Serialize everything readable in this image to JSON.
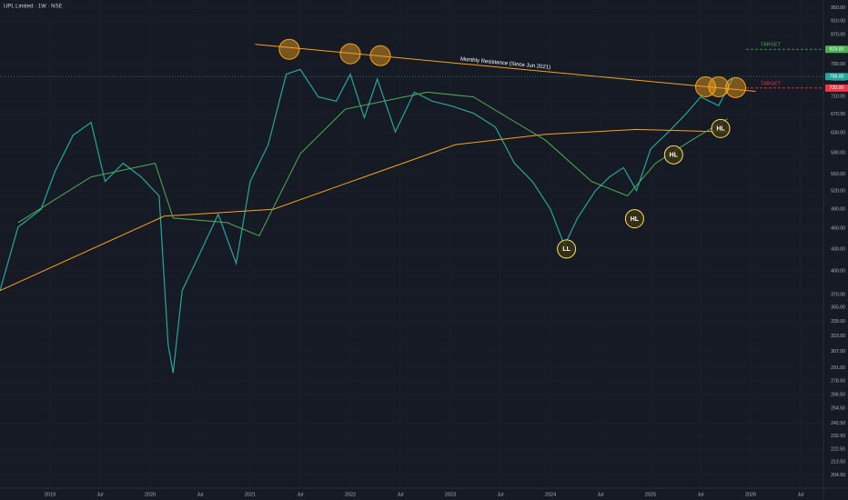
{
  "chart_data": {
    "type": "line",
    "title": "UPL Limited · 1W · NSE",
    "log_scale": true,
    "grid": true,
    "xlim": [
      2018.5,
      2026.727
    ],
    "ylim": [
      200,
      975
    ],
    "xticks": [
      2019,
      {
        "value": 2019.5,
        "label": "Jul"
      },
      2020,
      {
        "value": 2020.5,
        "label": "Jul"
      },
      2021,
      {
        "value": 2021.5,
        "label": "Jul"
      },
      2022,
      {
        "value": 2022.5,
        "label": "Jul"
      },
      2023,
      {
        "value": 2023.5,
        "label": "Jul"
      },
      2024,
      {
        "value": 2024.5,
        "label": "Jul"
      },
      2025,
      {
        "value": 2025.5,
        "label": "Jul"
      },
      2026,
      {
        "value": 2026.5,
        "label": "Jul"
      }
    ],
    "yticks": [
      {
        "value": 950,
        "label": "950.00"
      },
      {
        "value": 910,
        "label": "910.00"
      },
      {
        "value": 870,
        "label": "870.00"
      },
      {
        "value": 830,
        "label": "830.00"
      },
      {
        "value": 790,
        "label": "790.00"
      },
      {
        "value": 750,
        "label": "750.00"
      },
      {
        "value": 710,
        "label": "710.00"
      },
      {
        "value": 670,
        "label": "670.00"
      },
      {
        "value": 630,
        "label": "630.00"
      },
      {
        "value": 590,
        "label": "590.00"
      },
      {
        "value": 550,
        "label": "550.00"
      },
      {
        "value": 520,
        "label": "520.00"
      },
      {
        "value": 490,
        "label": "490.00"
      },
      {
        "value": 460,
        "label": "460.00"
      },
      {
        "value": 430,
        "label": "430.00"
      },
      {
        "value": 400,
        "label": "400.00"
      },
      {
        "value": 370,
        "label": "370.00"
      },
      {
        "value": 355,
        "label": "355.00"
      },
      {
        "value": 339,
        "label": "339.00"
      },
      {
        "value": 323,
        "label": "323.00"
      },
      {
        "value": 307,
        "label": "307.00"
      },
      {
        "value": 291,
        "label": "291.00"
      },
      {
        "value": 278.5,
        "label": "278.50"
      },
      {
        "value": 266.5,
        "label": "266.50"
      },
      {
        "value": 254.5,
        "label": "254.50"
      },
      {
        "value": 242.5,
        "label": "242.50"
      },
      {
        "value": 232.5,
        "label": "232.50"
      },
      {
        "value": 222.5,
        "label": "222.50"
      },
      {
        "value": 213.5,
        "label": "213.50"
      },
      {
        "value": 204.5,
        "label": "204.50"
      }
    ],
    "series": [
      {
        "color": "#26a69a",
        "x": [
          2018.5,
          2018.68,
          2018.91,
          2019.05,
          2019.23,
          2019.41,
          2019.55,
          2019.73,
          2019.91,
          2020.09,
          2020.18,
          2020.23,
          2020.32,
          2020.45,
          2020.68,
          2020.86,
          2021.0,
          2021.18,
          2021.36,
          2021.5,
          2021.68,
          2021.86,
          2022.0,
          2022.14,
          2022.27,
          2022.45,
          2022.64,
          2022.82,
          2023.0,
          2023.23,
          2023.45,
          2023.64,
          2023.82,
          2024.0,
          2024.14,
          2024.27,
          2024.45,
          2024.59,
          2024.73,
          2024.86,
          2025.0,
          2025.18,
          2025.36,
          2025.5,
          2025.68,
          2025.82
        ],
        "values": [
          375,
          462,
          490,
          555,
          625,
          652,
          537,
          570,
          545,
          512,
          314,
          286,
          375,
          410,
          482,
          410,
          537,
          606,
          764,
          776,
          709,
          699,
          764,
          662,
          752,
          632,
          720,
          699,
          689,
          672,
          642,
          570,
          537,
          490,
          435,
          476,
          521,
          545,
          562,
          521,
          597,
          632,
          672,
          709,
          689,
          752
        ]
      },
      {
        "color": "#f7a21b",
        "x": [
          2018.5,
          2020.14,
          2021.23,
          2022.14,
          2023.05,
          2023.95,
          2024.86,
          2025.77
        ],
        "values": [
          375,
          479,
          490,
          545,
          606,
          627,
          637,
          632
        ]
      },
      {
        "color": "#4caf50",
        "x": [
          2018.68,
          2019.41,
          2020.05,
          2020.23,
          2020.77,
          2021.09,
          2021.5,
          2021.95,
          2022.77,
          2023.23,
          2023.59,
          2023.95,
          2024.41,
          2024.77,
          2025.05,
          2025.41,
          2025.77
        ],
        "values": [
          469,
          545,
          570,
          476,
          469,
          449,
          588,
          681,
          720,
          709,
          660,
          615,
          537,
          512,
          570,
          615,
          660
        ]
      }
    ],
    "resistance": {
      "label": "Monthly Resistance (Since Jun 2021)",
      "color": "#f7a21b",
      "x": [
        2021.05,
        2026.05
      ],
      "values": [
        843,
        722
      ]
    },
    "resistance_touches": {
      "x": [
        2021.39,
        2022.0,
        2022.3,
        2025.55,
        2025.68,
        2025.85
      ],
      "values": [
        829,
        817,
        812,
        733,
        733,
        731
      ]
    },
    "pivots": {
      "labels": [
        "LL",
        "HL",
        "HL",
        "HL"
      ],
      "x": [
        2024.16,
        2024.84,
        2025.23,
        2025.7
      ],
      "values": [
        430,
        475,
        586,
        639
      ]
    },
    "targets": [
      {
        "label": "TARGET",
        "value": 829,
        "value_label": "829.00",
        "color": "#4caf50"
      },
      {
        "label": "TARGET",
        "value": 730,
        "value_label": "730.00",
        "color": "#f23645"
      }
    ],
    "last_price": {
      "value": 758,
      "label": "758.00",
      "color": "#26a69a"
    }
  }
}
